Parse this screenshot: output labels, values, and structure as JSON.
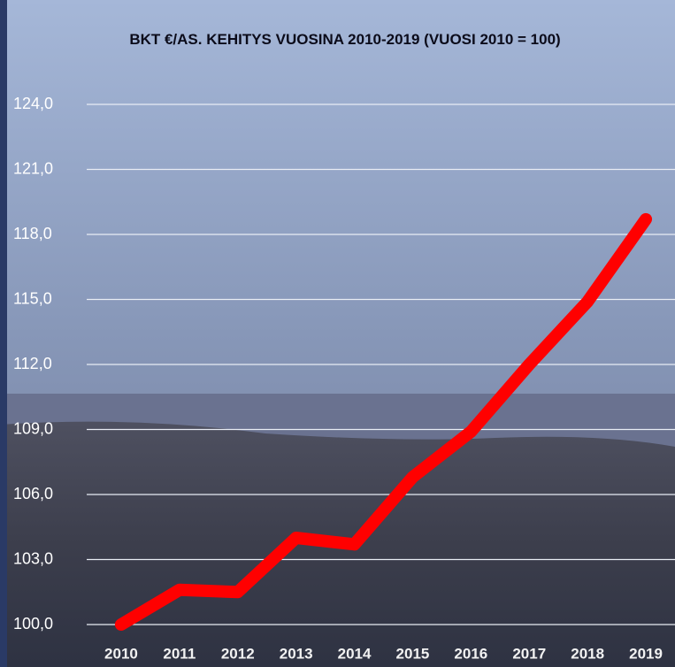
{
  "chart_data": {
    "type": "line",
    "title": "BKT €/AS. KEHITYS VUOSINA 2010-2019 (VUOSI 2010 = 100)",
    "categories": [
      "2010",
      "2011",
      "2012",
      "2013",
      "2014",
      "2015",
      "2016",
      "2017",
      "2018",
      "2019"
    ],
    "values": [
      100,
      101.6,
      101.5,
      104.0,
      103.7,
      106.8,
      108.9,
      112.0,
      114.9,
      118.7
    ],
    "color": "#ff0000",
    "ylim": [
      100,
      124
    ],
    "yticks": [
      {
        "value": 100,
        "label": "100,0"
      },
      {
        "value": 103,
        "label": "103,0"
      },
      {
        "value": 106,
        "label": "106,0"
      },
      {
        "value": 109,
        "label": "109,0"
      },
      {
        "value": 112,
        "label": "112,0"
      },
      {
        "value": 115,
        "label": "115,0"
      },
      {
        "value": 118,
        "label": "118,0"
      },
      {
        "value": 121,
        "label": "121,0"
      },
      {
        "value": 124,
        "label": "124,0"
      }
    ],
    "grid": true
  }
}
